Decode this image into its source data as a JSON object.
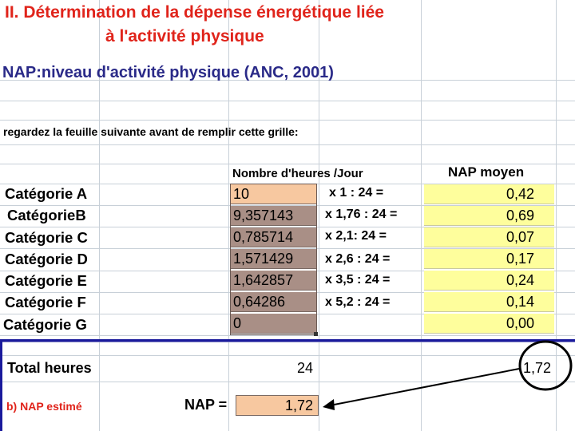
{
  "sheet": {
    "title_line1": "II. Détermination de la dépense énergétique liée",
    "title_line2": "à l'activité physique",
    "subtitle": "NAP:niveau d'activité physique (ANC, 2001)",
    "instruction": "regardez la  feuille suivante avant de remplir cette grille:",
    "col_hours_header": "Nombre d'heures /Jour",
    "col_nap_header": "NAP moyen"
  },
  "rows": [
    {
      "category": "Catégorie A",
      "hours": "10",
      "formula": "x 1 : 24 =",
      "nap": "0,42"
    },
    {
      "category": "CatégorieB",
      "hours": "9,357143",
      "formula": "x 1,76 : 24 =",
      "nap": "0,69"
    },
    {
      "category": "Catégorie C",
      "hours": "0,785714",
      "formula": "x 2,1: 24 =",
      "nap": "0,07"
    },
    {
      "category": "Catégorie D",
      "hours": "1,571429",
      "formula": "x 2,6 : 24 =",
      "nap": "0,17"
    },
    {
      "category": "Catégorie E",
      "hours": "1,642857",
      "formula": "x 3,5 : 24 =",
      "nap": "0,24"
    },
    {
      "category": "Catégorie F",
      "hours": "0,64286",
      "formula": "x 5,2 : 24 =",
      "nap": "0,14"
    },
    {
      "category": "Catégorie G",
      "hours": "0",
      "formula": "",
      "nap": "0,00"
    }
  ],
  "totals": {
    "total_label": "Total heures",
    "total_hours": "24",
    "total_nap": "1,72",
    "nap_estime_label": "b) NAP estimé",
    "nap_eq_label": "NAP =",
    "nap_estime_value": "1,72"
  },
  "colors": {
    "title": "#e0241b",
    "subtitle": "#2a2a88",
    "hours_fill": "#a98f86",
    "hours_first_fill": "#f7c8a0",
    "nap_fill": "#fefe9c",
    "separator": "#1a1a9c"
  }
}
